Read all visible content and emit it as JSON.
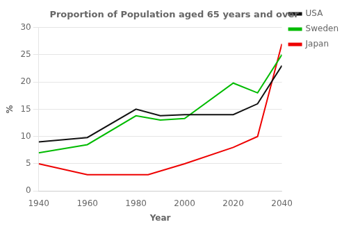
{
  "chart_data": {
    "type": "line",
    "title": "Proportion of Population aged 65 years and over",
    "x_label": "Year",
    "y_label": "%",
    "xlim": [
      1940,
      2040
    ],
    "ylim": [
      0,
      30
    ],
    "xticks": [
      1940,
      1960,
      1980,
      2000,
      2020,
      2040
    ],
    "yticks": [
      0,
      5,
      10,
      15,
      20,
      25,
      30
    ],
    "grid": "y",
    "legend": "right",
    "series": [
      {
        "name": "USA",
        "color": "#111111",
        "x": [
          1940,
          1960,
          1980,
          1990,
          2000,
          2020,
          2030,
          2040
        ],
        "values": [
          9,
          9.8,
          15,
          13.8,
          14,
          14,
          16,
          23
        ]
      },
      {
        "name": "Sweden",
        "color": "#00bb00",
        "x": [
          1940,
          1960,
          1980,
          1990,
          2000,
          2020,
          2030,
          2040
        ],
        "values": [
          7,
          8.5,
          13.8,
          13.0,
          13.3,
          19.8,
          18,
          25
        ]
      },
      {
        "name": "Japan",
        "color": "#ee0000",
        "x": [
          1940,
          1960,
          1985,
          2000,
          2020,
          2030,
          2040
        ],
        "values": [
          5,
          3,
          3,
          5,
          8,
          10,
          27
        ]
      }
    ]
  }
}
